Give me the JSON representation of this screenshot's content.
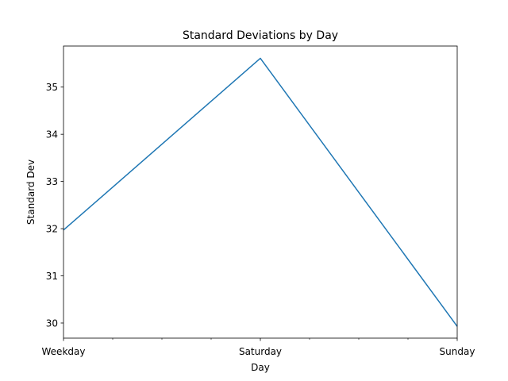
{
  "chart_data": {
    "type": "line",
    "title": "Standard Deviations by Day",
    "xlabel": "Day",
    "ylabel": "Standard Dev",
    "categories": [
      "Weekday",
      "Saturday",
      "Sunday"
    ],
    "series": [
      {
        "values": [
          31.97,
          35.61,
          29.93
        ],
        "color": "#1f77b4"
      }
    ],
    "ylim": [
      29.68,
      35.87
    ],
    "yticks": [
      30,
      31,
      32,
      33,
      34,
      35
    ],
    "minor_xticks_between_categories": 3,
    "grid": false,
    "legend": "none"
  }
}
